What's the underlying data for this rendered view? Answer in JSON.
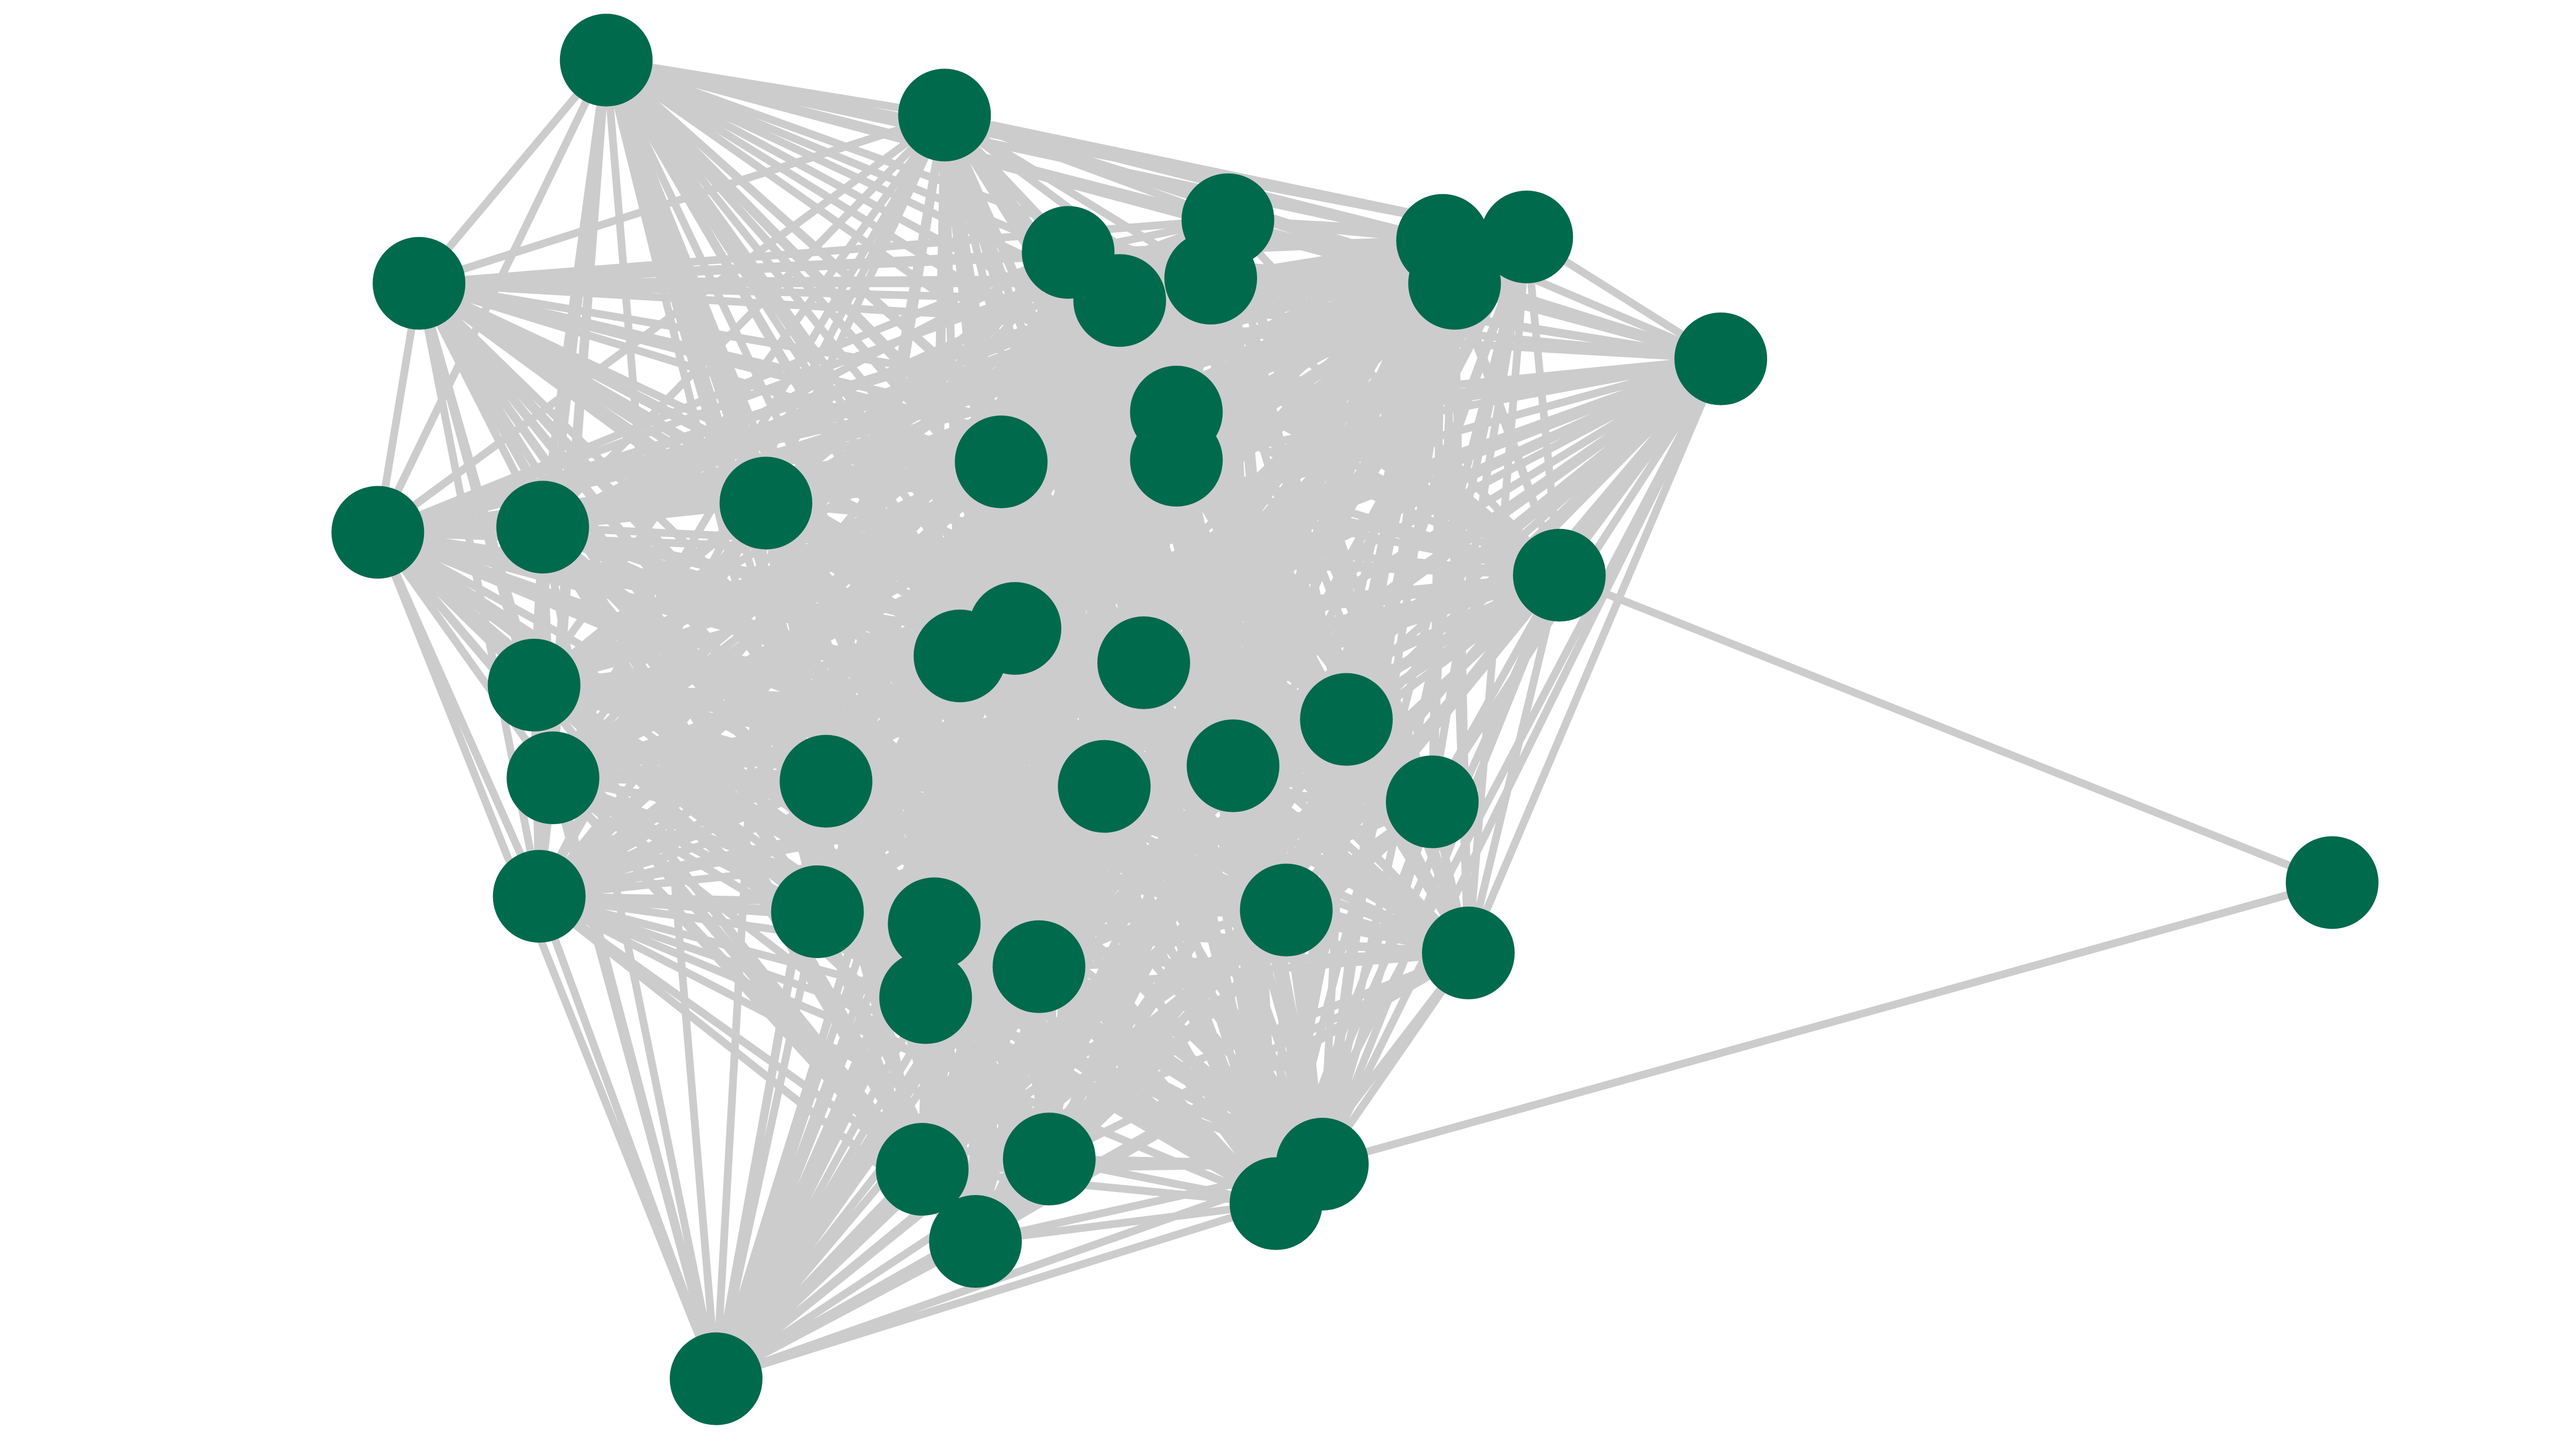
{
  "graph": {
    "type": "network",
    "node_color": "#006a4c",
    "edge_color": "#cccccc",
    "background": "#ffffff",
    "node_count": 42,
    "cluster_fully_connected": true,
    "outlier_node": "n19",
    "outlier_edges": [
      [
        "n19",
        "n18"
      ],
      [
        "n19",
        "n40"
      ]
    ]
  }
}
